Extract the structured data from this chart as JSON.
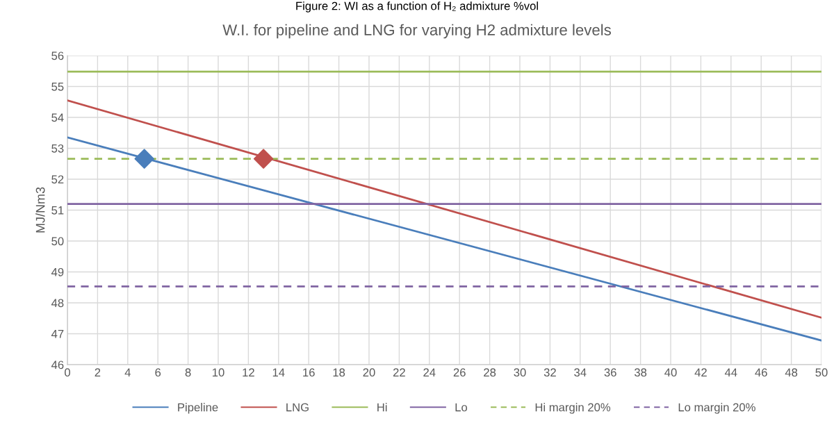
{
  "chart_data": {
    "type": "line",
    "title": "W.I. for pipeline and LNG for varying H2 admixture levels",
    "annotations": [
      "Figure 2: WI as a function of H₂ admixture %vol"
    ],
    "ylabel": "MJ/Nm3",
    "series": [
      {
        "name": "Pipeline",
        "color": "#4a7ebb",
        "x": [
          0,
          50
        ],
        "values": [
          53.35,
          46.78
        ],
        "line_style": "solid"
      },
      {
        "name": "LNG",
        "color": "#c0504d",
        "x": [
          0,
          50
        ],
        "values": [
          54.55,
          47.52
        ],
        "line_style": "solid"
      },
      {
        "name": "Hi",
        "color": "#9bbb59",
        "x": [
          0,
          50
        ],
        "values": [
          55.48,
          55.48
        ],
        "line_style": "solid"
      },
      {
        "name": "Lo",
        "color": "#8064a2",
        "x": [
          0,
          50
        ],
        "values": [
          51.2,
          51.2
        ],
        "line_style": "solid"
      },
      {
        "name": "Hi margin 20%",
        "color": "#9bbb59",
        "x": [
          0,
          50
        ],
        "values": [
          52.66,
          52.66
        ],
        "line_style": "dashed"
      },
      {
        "name": "Lo margin 20%",
        "color": "#8064a2",
        "x": [
          0,
          50
        ],
        "values": [
          48.53,
          48.53
        ],
        "line_style": "dashed"
      },
      {
        "type": "scatter",
        "color": "#4a7ebb",
        "x": [
          5.1
        ],
        "values": [
          52.66
        ],
        "marker": "diamond"
      },
      {
        "type": "scatter",
        "color": "#c0504d",
        "x": [
          13.0
        ],
        "values": [
          52.66
        ],
        "marker": "diamond"
      }
    ],
    "xlim": [
      0,
      50
    ],
    "xticks": [
      0,
      2,
      4,
      6,
      8,
      10,
      12,
      14,
      16,
      18,
      20,
      22,
      24,
      26,
      28,
      30,
      32,
      34,
      36,
      38,
      40,
      42,
      44,
      46,
      48,
      50
    ],
    "ylim": [
      46,
      56
    ],
    "yticks": [
      46,
      47,
      48,
      49,
      50,
      51,
      52,
      53,
      54,
      55,
      56
    ],
    "grid": true,
    "legend": "bottom"
  }
}
